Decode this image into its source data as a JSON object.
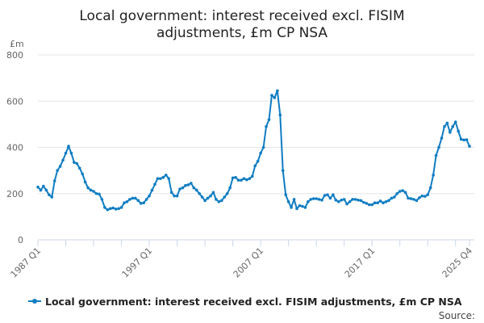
{
  "chart_data": {
    "type": "line",
    "title_lines": [
      "Local government: interest received excl. FISIM",
      "adjustments, £m CP NSA"
    ],
    "ylabel": "£m",
    "ylim": [
      0,
      800
    ],
    "yticks": [
      0,
      200,
      400,
      600,
      800
    ],
    "xlabel": "",
    "x_start": "1987 Q1",
    "x_end": "2025 Q4",
    "xtick_labels": [
      "1987 Q1",
      "1997 Q1",
      "2007 Q1",
      "2017 Q1",
      "2025 Q4"
    ],
    "grid": true,
    "legend_position": "bottom",
    "color": "#0f7dc2",
    "series": [
      {
        "name": "Local government: interest received excl. FISIM adjustments, £m CP NSA",
        "values": [
          228,
          215,
          232,
          215,
          195,
          185,
          255,
          300,
          318,
          345,
          375,
          405,
          375,
          335,
          330,
          310,
          285,
          250,
          225,
          215,
          210,
          200,
          198,
          175,
          140,
          130,
          135,
          138,
          133,
          135,
          140,
          160,
          165,
          175,
          180,
          180,
          170,
          158,
          160,
          175,
          190,
          215,
          240,
          265,
          265,
          270,
          280,
          265,
          205,
          190,
          190,
          220,
          225,
          235,
          238,
          245,
          225,
          215,
          200,
          185,
          170,
          180,
          190,
          205,
          175,
          165,
          170,
          185,
          200,
          225,
          268,
          270,
          258,
          258,
          265,
          260,
          265,
          275,
          320,
          340,
          375,
          400,
          490,
          520,
          625,
          615,
          645,
          540,
          300,
          195,
          165,
          140,
          175,
          135,
          148,
          145,
          140,
          165,
          175,
          178,
          178,
          175,
          172,
          192,
          195,
          180,
          195,
          172,
          165,
          172,
          175,
          155,
          165,
          175,
          175,
          172,
          170,
          162,
          158,
          152,
          152,
          160,
          160,
          168,
          160,
          165,
          170,
          180,
          185,
          200,
          210,
          213,
          205,
          180,
          178,
          175,
          170,
          182,
          190,
          188,
          195,
          225,
          280,
          365,
          400,
          440,
          490,
          505,
          465,
          490,
          510,
          470,
          435,
          432,
          433,
          405
        ]
      }
    ],
    "source_label": "Source:"
  }
}
